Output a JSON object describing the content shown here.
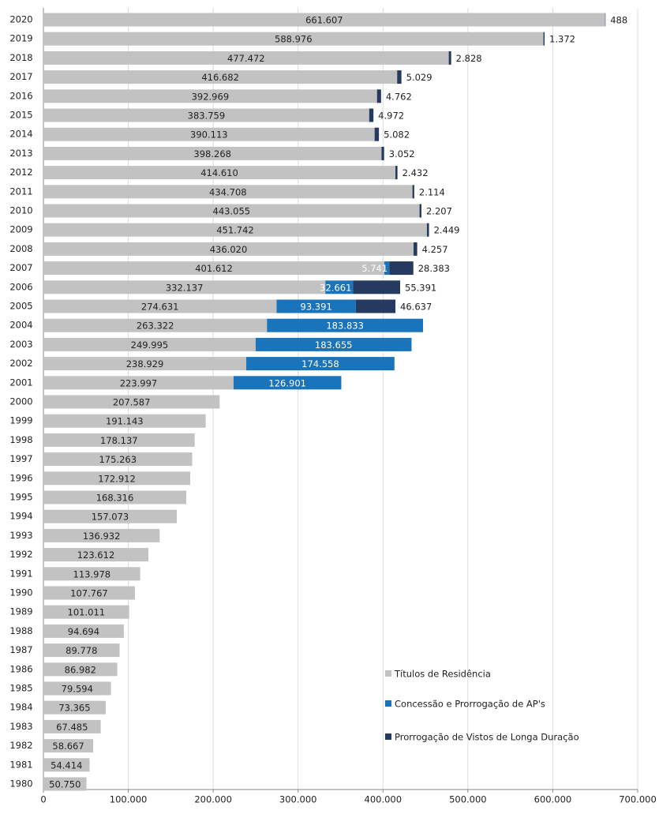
{
  "chart_data": {
    "type": "stacked_barh",
    "categories": [
      "2020",
      "2019",
      "2018",
      "2017",
      "2016",
      "2015",
      "2014",
      "2013",
      "2012",
      "2011",
      "2010",
      "2009",
      "2008",
      "2007",
      "2006",
      "2005",
      "2004",
      "2003",
      "2002",
      "2001",
      "2000",
      "1999",
      "1998",
      "1997",
      "1996",
      "1995",
      "1994",
      "1993",
      "1992",
      "1991",
      "1990",
      "1989",
      "1988",
      "1987",
      "1986",
      "1985",
      "1984",
      "1983",
      "1982",
      "1981",
      "1980"
    ],
    "series": [
      {
        "name": "Títulos de Residência",
        "color": "#c2c2c2",
        "values": [
          661607,
          588976,
          477472,
          416682,
          392969,
          383759,
          390113,
          398268,
          414610,
          434708,
          443055,
          451742,
          436020,
          401612,
          332137,
          274631,
          263322,
          249995,
          238929,
          223997,
          207587,
          191143,
          178137,
          175263,
          172912,
          168316,
          157073,
          136932,
          123612,
          113978,
          107767,
          101011,
          94694,
          89778,
          86982,
          79594,
          73365,
          67485,
          58667,
          54414,
          50750
        ],
        "value_labels": [
          "661.607",
          "588.976",
          "477.472",
          "416.682",
          "392.969",
          "383.759",
          "390.113",
          "398.268",
          "414.610",
          "434.708",
          "443.055",
          "451.742",
          "436.020",
          "401.612",
          "332.137",
          "274.631",
          "263.322",
          "249.995",
          "238.929",
          "223.997",
          "207.587",
          "191.143",
          "178.137",
          "175.263",
          "172.912",
          "168.316",
          "157.073",
          "136.932",
          "123.612",
          "113.978",
          "107.767",
          "101.011",
          "94.694",
          "89.778",
          "86.982",
          "79.594",
          "73.365",
          "67.485",
          "58.667",
          "54.414",
          "50.750"
        ]
      },
      {
        "name": "Concessão e Prorrogação de AP's",
        "color": "#1a74bb",
        "values": [
          null,
          null,
          null,
          null,
          null,
          null,
          null,
          null,
          null,
          null,
          null,
          null,
          null,
          5741,
          32661,
          93391,
          183833,
          183655,
          174558,
          126901,
          null,
          null,
          null,
          null,
          null,
          null,
          null,
          null,
          null,
          null,
          null,
          null,
          null,
          null,
          null,
          null,
          null,
          null,
          null,
          null,
          null
        ],
        "value_labels": [
          null,
          null,
          null,
          null,
          null,
          null,
          null,
          null,
          null,
          null,
          null,
          null,
          null,
          "5.741",
          "32.661",
          "93.391",
          "183.833",
          "183.655",
          "174.558",
          "126.901",
          null,
          null,
          null,
          null,
          null,
          null,
          null,
          null,
          null,
          null,
          null,
          null,
          null,
          null,
          null,
          null,
          null,
          null,
          null,
          null,
          null
        ]
      },
      {
        "name": "Prorrogação de Vistos de Longa Duração",
        "color": "#253a5e",
        "values": [
          488,
          1372,
          2828,
          5029,
          4762,
          4972,
          5082,
          3052,
          2432,
          2114,
          2207,
          2449,
          4257,
          28383,
          55391,
          46637,
          null,
          null,
          null,
          null,
          null,
          null,
          null,
          null,
          null,
          null,
          null,
          null,
          null,
          null,
          null,
          null,
          null,
          null,
          null,
          null,
          null,
          null,
          null,
          null,
          null
        ],
        "value_labels": [
          "488",
          "1.372",
          "2.828",
          "5.029",
          "4.762",
          "4.972",
          "5.082",
          "3.052",
          "2.432",
          "2.114",
          "2.207",
          "2.449",
          "4.257",
          "28.383",
          "55.391",
          "46.637",
          null,
          null,
          null,
          null,
          null,
          null,
          null,
          null,
          null,
          null,
          null,
          null,
          null,
          null,
          null,
          null,
          null,
          null,
          null,
          null,
          null,
          null,
          null,
          null,
          null
        ]
      }
    ],
    "xlim": [
      0,
      700000
    ],
    "xticks": [
      0,
      {
        "value": 100000,
        "label": "100.000"
      },
      {
        "value": 200000,
        "label": "200.000"
      },
      {
        "value": 300000,
        "label": "300.000"
      },
      {
        "value": 400000,
        "label": "400.000"
      },
      {
        "value": 500000,
        "label": "500.000"
      },
      {
        "value": 600000,
        "label": "600.000"
      },
      {
        "value": 700000,
        "label": "700.000"
      }
    ],
    "grid": true
  }
}
